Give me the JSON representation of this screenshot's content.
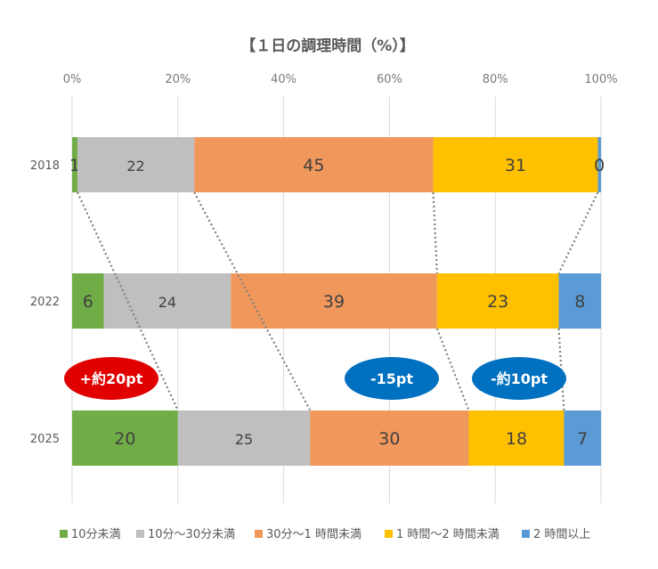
{
  "chart_data": {
    "type": "bar",
    "orientation": "horizontal",
    "stacked": true,
    "percent": true,
    "title": "【１日の調理時間（%）】",
    "xlabel": "",
    "ylabel": "",
    "xlim": [
      0,
      100
    ],
    "x_ticks": [
      "0%",
      "20%",
      "40%",
      "60%",
      "80%",
      "100%"
    ],
    "grid": true,
    "legend_position": "bottom",
    "categories": [
      "2018",
      "2022",
      "2025"
    ],
    "series": [
      {
        "name": "10分未満",
        "color": "#70AD47",
        "values": [
          1,
          6,
          20
        ]
      },
      {
        "name": "10分～30分未満",
        "color": "#BFBFBF",
        "values": [
          22,
          24,
          25
        ]
      },
      {
        "name": "30分～1 時間未満",
        "color": "#F0975C",
        "values": [
          45,
          39,
          30
        ]
      },
      {
        "name": "1 時間～2 時間未満",
        "color": "#FFC000",
        "values": [
          31,
          23,
          18
        ]
      },
      {
        "name": "2 時間以上",
        "color": "#5B9BD5",
        "values": [
          0,
          8,
          7
        ]
      }
    ],
    "annotations": [
      {
        "text": "+約20pt",
        "color": "#E00000"
      },
      {
        "text": "-15pt",
        "color": "#0070C0"
      },
      {
        "text": "-約10pt",
        "color": "#0070C0"
      }
    ]
  }
}
